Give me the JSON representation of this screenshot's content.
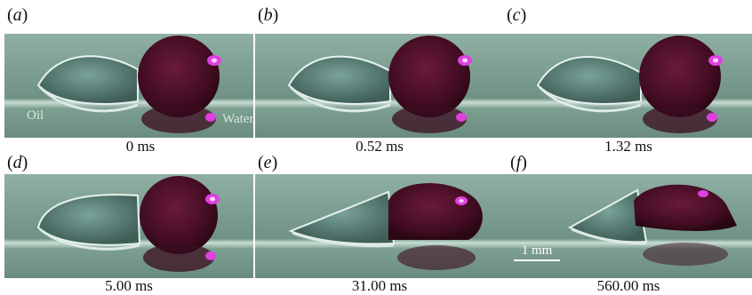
{
  "panels": [
    {
      "label": "a",
      "time": "0 ms"
    },
    {
      "label": "b",
      "time": "0.52 ms"
    },
    {
      "label": "c",
      "time": "1.32 ms"
    },
    {
      "label": "d",
      "time": "5.00 ms"
    },
    {
      "label": "e",
      "time": "31.00 ms"
    },
    {
      "label": "f",
      "time": "560.00 ms"
    }
  ],
  "annotations": {
    "oil": "Oil",
    "water": "Water"
  },
  "scale_bar": {
    "label": "1 mm"
  },
  "colors": {
    "background": "#7fa394",
    "water_drop": "#4a1026",
    "highlight": "#e040e0",
    "oil_drop": "#5d8078"
  }
}
